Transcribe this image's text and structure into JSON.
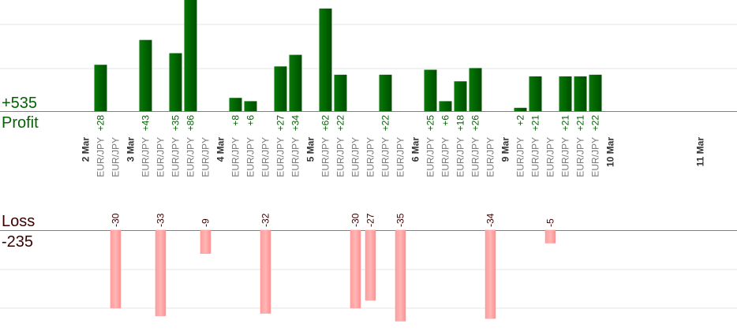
{
  "summary": {
    "profit_total": "+535",
    "profit_label": "Profit",
    "loss_label": "Loss",
    "loss_total": "-235"
  },
  "colors": {
    "profit_bar": "#006400",
    "loss_bar": "#ffb6b6",
    "profit_text": "#006400",
    "loss_text": "#3a0000",
    "gridline": "#e6e6e6",
    "baseline": "#808080",
    "instrument_text": "#7a7a7a",
    "date_text": "#333333"
  },
  "chart_data": {
    "type": "bar",
    "instrument": "EUR/JPY",
    "grid": true,
    "profit_ylim": [
      0,
      60
    ],
    "loss_ylim": [
      -35,
      0
    ],
    "dates": [
      {
        "label": "2 Mar",
        "slot": 0
      },
      {
        "label": "3 Mar",
        "slot": 3
      },
      {
        "label": "4 Mar",
        "slot": 9
      },
      {
        "label": "5 Mar",
        "slot": 15
      },
      {
        "label": "6 Mar",
        "slot": 22
      },
      {
        "label": "9 Mar",
        "slot": 28
      },
      {
        "label": "10 Mar",
        "slot": 35
      },
      {
        "label": "11 Mar",
        "slot": 41
      }
    ],
    "trades": [
      {
        "slot": 1,
        "value": 28,
        "label": "+28"
      },
      {
        "slot": 2,
        "value": -30,
        "label": "-30"
      },
      {
        "slot": 4,
        "value": 43,
        "label": "+43"
      },
      {
        "slot": 5,
        "value": -33,
        "label": "-33"
      },
      {
        "slot": 6,
        "value": 35,
        "label": "+35"
      },
      {
        "slot": 7,
        "value": 86,
        "label": "+86"
      },
      {
        "slot": 8,
        "value": -9,
        "label": "-9"
      },
      {
        "slot": 10,
        "value": 8,
        "label": "+8"
      },
      {
        "slot": 11,
        "value": 6,
        "label": "+6"
      },
      {
        "slot": 12,
        "value": -32,
        "label": "-32"
      },
      {
        "slot": 13,
        "value": 27,
        "label": "+27"
      },
      {
        "slot": 14,
        "value": 34,
        "label": "+34"
      },
      {
        "slot": 16,
        "value": 62,
        "label": "+62"
      },
      {
        "slot": 17,
        "value": 22,
        "label": "+22"
      },
      {
        "slot": 18,
        "value": -30,
        "label": "-30"
      },
      {
        "slot": 19,
        "value": -27,
        "label": "-27"
      },
      {
        "slot": 20,
        "value": 22,
        "label": "+22"
      },
      {
        "slot": 21,
        "value": -35,
        "label": "-35"
      },
      {
        "slot": 23,
        "value": 25,
        "label": "+25"
      },
      {
        "slot": 24,
        "value": 6,
        "label": "+6"
      },
      {
        "slot": 25,
        "value": 18,
        "label": "+18"
      },
      {
        "slot": 26,
        "value": 26,
        "label": "+26"
      },
      {
        "slot": 27,
        "value": -34,
        "label": "-34"
      },
      {
        "slot": 29,
        "value": 2,
        "label": "+2"
      },
      {
        "slot": 30,
        "value": 21,
        "label": "+21"
      },
      {
        "slot": 31,
        "value": -5,
        "label": "-5"
      },
      {
        "slot": 32,
        "value": 21,
        "label": "+21"
      },
      {
        "slot": 33,
        "value": 21,
        "label": "+21"
      },
      {
        "slot": 34,
        "value": 22,
        "label": "+22"
      }
    ]
  }
}
